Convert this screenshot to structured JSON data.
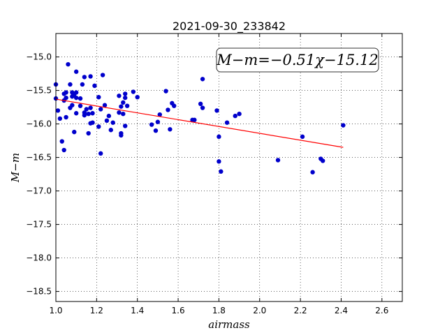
{
  "chart_data": {
    "type": "scatter",
    "title": "2021-09-30_233842",
    "xlabel": "airmass",
    "ylabel": "M−m",
    "xlim": [
      1.0,
      2.7
    ],
    "ylim": [
      -18.65,
      -14.65
    ],
    "y_inverted": true,
    "grid": true,
    "xticks": [
      1.0,
      1.2,
      1.4,
      1.6,
      1.8,
      2.0,
      2.2,
      2.4,
      2.6
    ],
    "xtick_labels": [
      "1.0",
      "1.2",
      "1.4",
      "1.6",
      "1.8",
      "2.0",
      "2.2",
      "2.4",
      "2.6"
    ],
    "yticks": [
      -15.0,
      -15.5,
      -16.0,
      -16.5,
      -17.0,
      -17.5,
      -18.0,
      -18.5
    ],
    "ytick_labels": [
      "−15.0",
      "−15.5",
      "−16.0",
      "−16.5",
      "−17.0",
      "−17.5",
      "−18.0",
      "−18.5"
    ],
    "annotation": "M−m=−0.51χ−15.12",
    "fit": {
      "slope": -0.51,
      "intercept": -15.12,
      "x_range": [
        1.0,
        2.41
      ],
      "color": "#ff0000"
    },
    "point_color": "#0000cc",
    "points": [
      [
        1.0,
        -15.41
      ],
      [
        1.0,
        -15.62
      ],
      [
        1.01,
        -15.8
      ],
      [
        1.02,
        -15.92
      ],
      [
        1.03,
        -16.26
      ],
      [
        1.04,
        -16.39
      ],
      [
        1.04,
        -15.55
      ],
      [
        1.04,
        -15.65
      ],
      [
        1.05,
        -15.53
      ],
      [
        1.05,
        -15.61
      ],
      [
        1.05,
        -15.9
      ],
      [
        1.06,
        -15.11
      ],
      [
        1.07,
        -15.41
      ],
      [
        1.07,
        -15.76
      ],
      [
        1.08,
        -15.53
      ],
      [
        1.08,
        -15.59
      ],
      [
        1.08,
        -15.72
      ],
      [
        1.09,
        -15.56
      ],
      [
        1.09,
        -16.12
      ],
      [
        1.1,
        -15.53
      ],
      [
        1.1,
        -15.61
      ],
      [
        1.1,
        -15.84
      ],
      [
        1.1,
        -15.22
      ],
      [
        1.12,
        -15.62
      ],
      [
        1.12,
        -15.73
      ],
      [
        1.13,
        -15.41
      ],
      [
        1.14,
        -15.3
      ],
      [
        1.14,
        -15.83
      ],
      [
        1.14,
        -15.87
      ],
      [
        1.15,
        -15.78
      ],
      [
        1.16,
        -16.14
      ],
      [
        1.16,
        -15.85
      ],
      [
        1.17,
        -15.29
      ],
      [
        1.17,
        -15.76
      ],
      [
        1.17,
        -15.99
      ],
      [
        1.18,
        -15.84
      ],
      [
        1.18,
        -15.98
      ],
      [
        1.19,
        -15.43
      ],
      [
        1.21,
        -15.6
      ],
      [
        1.21,
        -16.04
      ],
      [
        1.22,
        -15.78
      ],
      [
        1.22,
        -16.44
      ],
      [
        1.23,
        -15.27
      ],
      [
        1.24,
        -15.72
      ],
      [
        1.25,
        -15.95
      ],
      [
        1.26,
        -15.88
      ],
      [
        1.27,
        -16.09
      ],
      [
        1.28,
        -15.98
      ],
      [
        1.31,
        -15.83
      ],
      [
        1.31,
        -15.58
      ],
      [
        1.32,
        -15.74
      ],
      [
        1.32,
        -16.14
      ],
      [
        1.32,
        -16.17
      ],
      [
        1.33,
        -15.85
      ],
      [
        1.33,
        -15.68
      ],
      [
        1.34,
        -15.55
      ],
      [
        1.34,
        -15.61
      ],
      [
        1.34,
        -16.03
      ],
      [
        1.35,
        -15.73
      ],
      [
        1.38,
        -15.52
      ],
      [
        1.4,
        -15.6
      ],
      [
        1.47,
        -16.01
      ],
      [
        1.49,
        -16.1
      ],
      [
        1.5,
        -15.97
      ],
      [
        1.51,
        -15.86
      ],
      [
        1.54,
        -15.51
      ],
      [
        1.55,
        -15.79
      ],
      [
        1.56,
        -16.08
      ],
      [
        1.57,
        -15.69
      ],
      [
        1.58,
        -15.73
      ],
      [
        1.67,
        -15.94
      ],
      [
        1.68,
        -15.94
      ],
      [
        1.71,
        -15.7
      ],
      [
        1.72,
        -15.33
      ],
      [
        1.72,
        -15.76
      ],
      [
        1.79,
        -15.8
      ],
      [
        1.8,
        -16.19
      ],
      [
        1.8,
        -16.56
      ],
      [
        1.81,
        -16.71
      ],
      [
        1.84,
        -15.98
      ],
      [
        1.88,
        -15.88
      ],
      [
        1.9,
        -15.85
      ],
      [
        2.09,
        -16.54
      ],
      [
        2.21,
        -16.19
      ],
      [
        2.26,
        -16.72
      ],
      [
        2.3,
        -16.52
      ],
      [
        2.31,
        -16.55
      ],
      [
        2.41,
        -16.02
      ]
    ]
  }
}
